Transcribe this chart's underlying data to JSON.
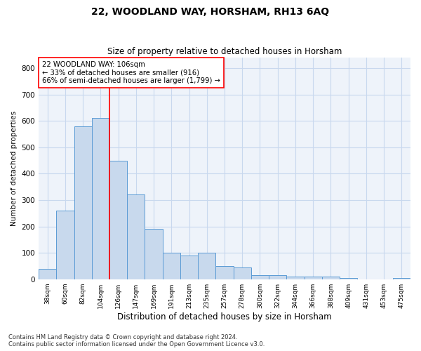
{
  "title": "22, WOODLAND WAY, HORSHAM, RH13 6AQ",
  "subtitle": "Size of property relative to detached houses in Horsham",
  "xlabel": "Distribution of detached houses by size in Horsham",
  "ylabel": "Number of detached properties",
  "categories": [
    "38sqm",
    "60sqm",
    "82sqm",
    "104sqm",
    "126sqm",
    "147sqm",
    "169sqm",
    "191sqm",
    "213sqm",
    "235sqm",
    "257sqm",
    "278sqm",
    "300sqm",
    "322sqm",
    "344sqm",
    "366sqm",
    "388sqm",
    "409sqm",
    "431sqm",
    "453sqm",
    "475sqm"
  ],
  "values": [
    40,
    260,
    580,
    610,
    450,
    320,
    190,
    100,
    90,
    100,
    50,
    45,
    15,
    15,
    10,
    10,
    10,
    5,
    0,
    0,
    5
  ],
  "bar_color": "#c8d9ed",
  "bar_edge_color": "#5b9bd5",
  "vline_x_idx": 3.5,
  "annotation_text_line1": "22 WOODLAND WAY: 106sqm",
  "annotation_text_line2": "← 33% of detached houses are smaller (916)",
  "annotation_text_line3": "66% of semi-detached houses are larger (1,799) →",
  "vline_color": "red",
  "ylim": [
    0,
    840
  ],
  "yticks": [
    0,
    100,
    200,
    300,
    400,
    500,
    600,
    700,
    800
  ],
  "grid_color": "#c8d8ee",
  "background_color": "#eef3fa",
  "footer_line1": "Contains HM Land Registry data © Crown copyright and database right 2024.",
  "footer_line2": "Contains public sector information licensed under the Open Government Licence v3.0."
}
